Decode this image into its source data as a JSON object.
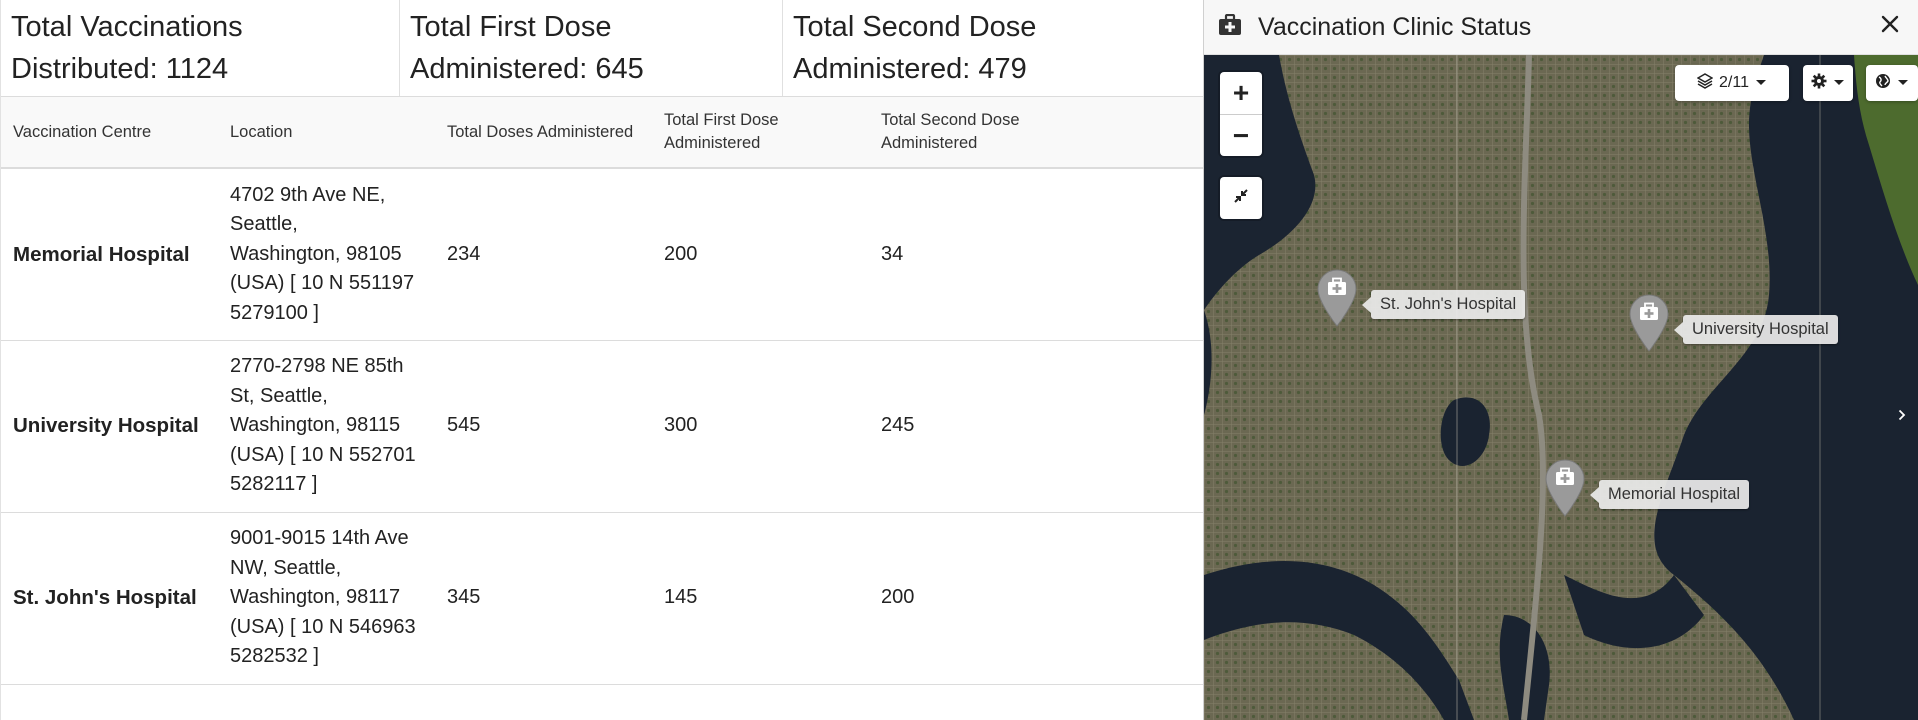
{
  "stats": [
    {
      "line1": "Total Vaccinations",
      "line2": "Distributed: 1124"
    },
    {
      "line1": "Total First Dose",
      "line2": "Administered: 645"
    },
    {
      "line1": "Total Second Dose",
      "line2": "Administered: 479"
    }
  ],
  "table": {
    "headers": {
      "centre": "Vaccination Centre",
      "location": "Location",
      "total": "Total Doses Administered",
      "first_line1": "Total First Dose",
      "first_line2": "Administered",
      "second_line1": "Total Second Dose",
      "second_line2": "Administered"
    },
    "rows": [
      {
        "name": "Memorial Hospital",
        "loc1": "4702 9th Ave NE,",
        "loc2": "Seattle,",
        "loc3": "Washington, 98105",
        "loc4": "(USA) [ 10 N 551197",
        "loc5": "5279100 ]",
        "total": "234",
        "first": "200",
        "second": "34"
      },
      {
        "name": "University Hospital",
        "loc1": "2770-2798 NE 85th",
        "loc2": "St, Seattle,",
        "loc3": "Washington, 98115",
        "loc4": "(USA) [ 10 N 552701",
        "loc5": "5282117 ]",
        "total": "545",
        "first": "300",
        "second": "245"
      },
      {
        "name": "St. John's Hospital",
        "loc1": "9001-9015 14th Ave",
        "loc2": "NW, Seattle,",
        "loc3": "Washington, 98117",
        "loc4": "(USA) [ 10 N 546963",
        "loc5": "5282532 ]",
        "total": "345",
        "first": "145",
        "second": "200"
      }
    ]
  },
  "panel": {
    "title": "Vaccination Clinic Status",
    "title_icon": "medical-kit-icon",
    "close_icon": "close-icon"
  },
  "map": {
    "layers_count": "2/11",
    "markers": [
      {
        "label": "St. John's Hospital"
      },
      {
        "label": "University Hospital"
      },
      {
        "label": "Memorial Hospital"
      }
    ],
    "colors": {
      "water": "#1b2431",
      "land": "#6d6a55",
      "marker": "#9a9a9a"
    }
  }
}
